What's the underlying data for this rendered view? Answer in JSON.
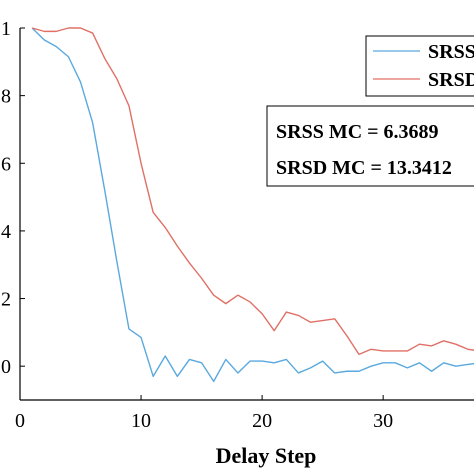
{
  "chart_data": {
    "type": "line",
    "xlabel": "Delay Step",
    "ylabel": "",
    "xlim": [
      0,
      38
    ],
    "ylim": [
      -0.1,
      1.0
    ],
    "x_ticks": [
      0,
      10,
      20,
      30
    ],
    "x_tick_labels": [
      "0",
      "10",
      "20",
      "30"
    ],
    "y_ticks": [
      0,
      0.2,
      0.4,
      0.6,
      0.8,
      1.0
    ],
    "y_tick_labels": [
      "0",
      ".2",
      ".4",
      ".6",
      ".8",
      "1"
    ],
    "grid": false,
    "legend_position": "top-right",
    "x": [
      1,
      2,
      3,
      4,
      5,
      6,
      7,
      8,
      9,
      10,
      11,
      12,
      13,
      14,
      15,
      16,
      17,
      18,
      19,
      20,
      21,
      22,
      23,
      24,
      25,
      26,
      27,
      28,
      29,
      30,
      31,
      32,
      33,
      34,
      35,
      36,
      37,
      38
    ],
    "series": [
      {
        "name": "SRSS",
        "color": "#5aa9de",
        "values": [
          1.0,
          0.965,
          0.945,
          0.915,
          0.84,
          0.72,
          0.52,
          0.31,
          0.11,
          0.085,
          -0.03,
          0.03,
          -0.03,
          0.02,
          0.01,
          -0.045,
          0.02,
          -0.02,
          0.015,
          0.015,
          0.01,
          0.02,
          -0.02,
          -0.005,
          0.015,
          -0.02,
          -0.015,
          -0.015,
          0.0,
          0.01,
          0.01,
          -0.005,
          0.01,
          -0.015,
          0.01,
          0.0,
          0.005,
          0.01
        ]
      },
      {
        "name": "SRSD",
        "color": "#e07065",
        "values": [
          1.0,
          0.99,
          0.99,
          1.0,
          1.0,
          0.985,
          0.91,
          0.85,
          0.77,
          0.6,
          0.455,
          0.41,
          0.355,
          0.305,
          0.26,
          0.21,
          0.185,
          0.21,
          0.19,
          0.155,
          0.105,
          0.16,
          0.15,
          0.13,
          0.135,
          0.14,
          0.09,
          0.035,
          0.05,
          0.045,
          0.045,
          0.045,
          0.065,
          0.06,
          0.075,
          0.065,
          0.05,
          0.045
        ]
      }
    ],
    "annotations": [
      "SRSS MC = 6.3689",
      "SRSD MC = 13.3412"
    ]
  }
}
